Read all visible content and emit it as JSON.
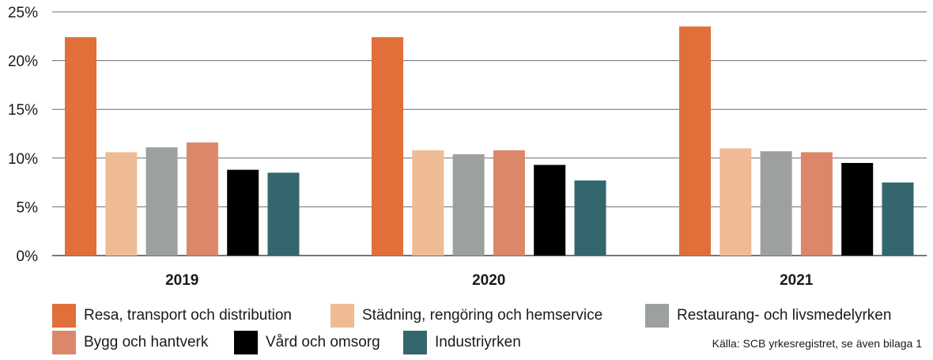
{
  "chart_data": {
    "type": "bar",
    "categories": [
      "2019",
      "2020",
      "2021"
    ],
    "series": [
      {
        "name": "Resa, transport och distribution",
        "color": "#E06F3A",
        "values": [
          22.4,
          22.4,
          23.5
        ]
      },
      {
        "name": "Städning, rengöring och hemservice",
        "color": "#EFBB95",
        "values": [
          10.6,
          10.8,
          11.0
        ]
      },
      {
        "name": "Restaurang- och livsmedelyrken",
        "color": "#9DA19D",
        "values": [
          11.1,
          10.4,
          10.7
        ]
      },
      {
        "name": "Bygg och hantverk",
        "color": "#DC8769",
        "values": [
          11.6,
          10.8,
          10.6
        ]
      },
      {
        "name": "Vård och omsorg",
        "color": "#000000",
        "values": [
          8.8,
          9.3,
          9.5
        ]
      },
      {
        "name": "Industriyrken",
        "color": "#33676D",
        "values": [
          8.5,
          7.7,
          7.5
        ]
      }
    ],
    "yticks": [
      "0%",
      "5%",
      "10%",
      "15%",
      "20%",
      "25%"
    ],
    "ylim": [
      0,
      25
    ],
    "grid": true,
    "legend_position": "bottom"
  },
  "source": "Källa: SCB yrkesregistret, se även bilaga 1"
}
